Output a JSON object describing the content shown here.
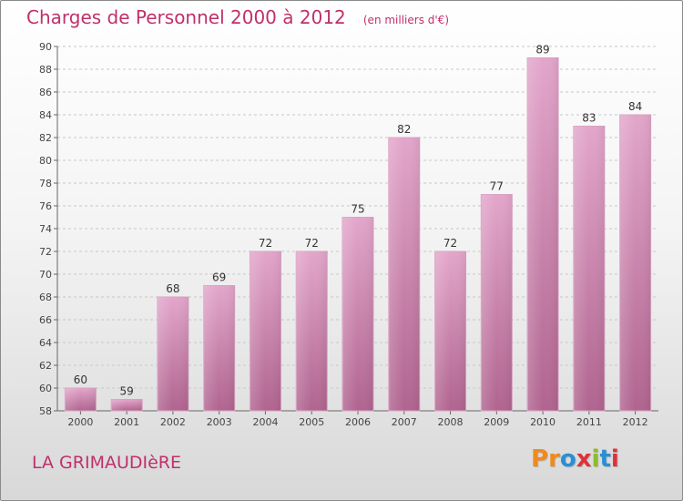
{
  "header": {
    "title": "Charges de Personnel 2000 à 2012",
    "subtitle": "(en milliers d'€)"
  },
  "footer": {
    "commune": "LA GRIMAUDIèRE",
    "logo": "Proxiti"
  },
  "colors": {
    "accent": "#c0306a",
    "bar_top": "#e3a6cb",
    "bar_bottom": "#b0648f",
    "logo_letters": [
      "#f08a1c",
      "#f08a1c",
      "#2a8fd4",
      "#e0313a",
      "#8cbd2a",
      "#2a8fd4",
      "#e0313a"
    ]
  },
  "chart_data": {
    "type": "bar",
    "categories": [
      "2000",
      "2001",
      "2002",
      "2003",
      "2004",
      "2005",
      "2006",
      "2007",
      "2008",
      "2009",
      "2010",
      "2011",
      "2012"
    ],
    "values": [
      60,
      59,
      68,
      69,
      72,
      72,
      75,
      82,
      72,
      77,
      89,
      83,
      84
    ],
    "title": "Charges de Personnel 2000 à 2012",
    "subtitle": "(en milliers d'€)",
    "xlabel": "",
    "ylabel": "",
    "ylim": [
      58,
      90
    ],
    "yticks": [
      58,
      60,
      62,
      64,
      66,
      68,
      70,
      72,
      74,
      76,
      78,
      80,
      82,
      84,
      86,
      88,
      90
    ],
    "grid": true,
    "legend": "none"
  }
}
